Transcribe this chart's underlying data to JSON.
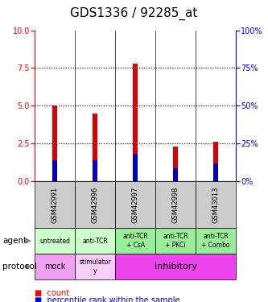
{
  "title": "GDS1336 / 92285_at",
  "samples": [
    "GSM42991",
    "GSM42996",
    "GSM42997",
    "GSM42998",
    "GSM43013"
  ],
  "count_values": [
    5.0,
    4.5,
    7.8,
    2.3,
    2.6
  ],
  "percentile_values": [
    1.4,
    1.4,
    1.8,
    0.85,
    1.2
  ],
  "ylim_left": [
    0,
    10
  ],
  "ylim_right": [
    0,
    100
  ],
  "yticks_left": [
    0,
    2.5,
    5.0,
    7.5,
    10
  ],
  "yticks_right": [
    0,
    25,
    50,
    75,
    100
  ],
  "bar_color": "#dd0000",
  "percentile_color": "#0000cc",
  "bar_width": 0.12,
  "agent_labels": [
    "untreated",
    "anti-TCR",
    "anti-TCR\n+ CsA",
    "anti-TCR\n+ PKCi",
    "anti-TCR\n+ Combo"
  ],
  "agent_bg_light": "#ccffcc",
  "agent_bg_dark": "#99ee99",
  "sample_bg": "#cccccc",
  "protocol_mock_bg": "#ee88ee",
  "protocol_stim_bg": "#ffaaff",
  "protocol_inhib_bg": "#ee44ee",
  "title_fontsize": 11,
  "tick_fontsize": 7,
  "legend_fontsize": 7
}
